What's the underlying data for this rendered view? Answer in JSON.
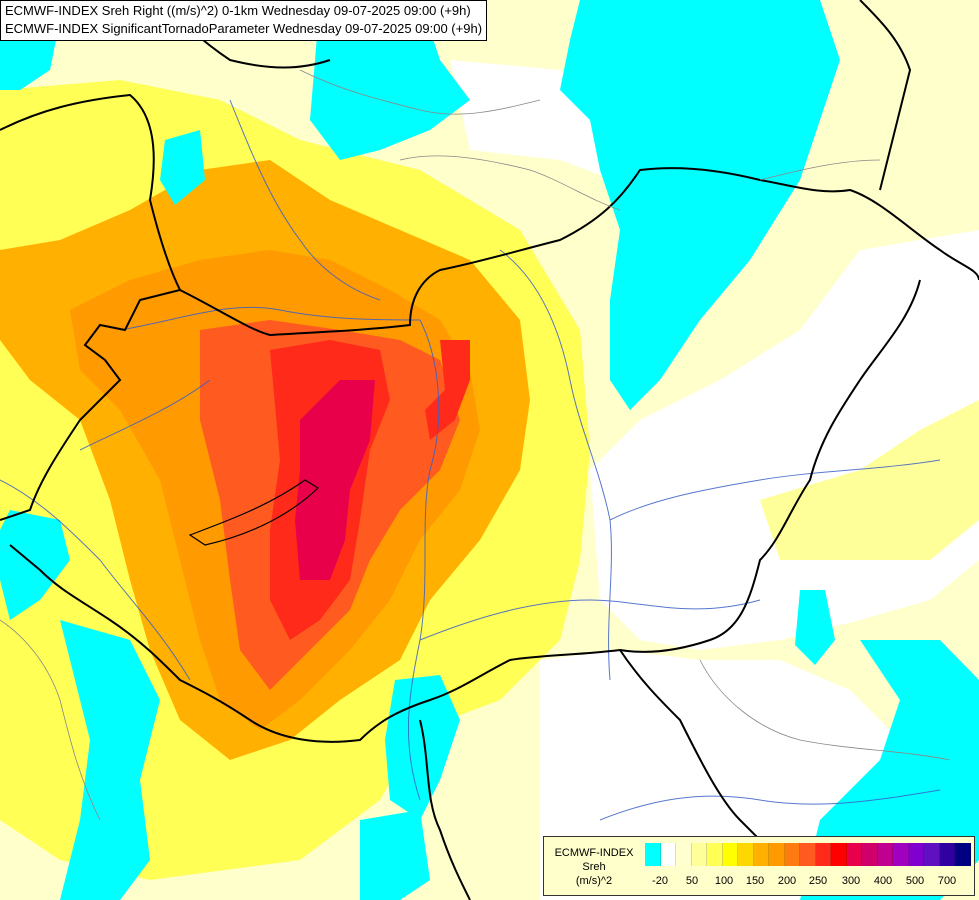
{
  "header": {
    "line1": "ECMWF-INDEX Sreh Right ((m/s)^2) 0-1km Wednesday 09-07-2025 09:00 (+9h)",
    "line2": "ECMWF-INDEX SignificantTornadoParameter Wednesday 09-07-2025 09:00 (+9h)"
  },
  "legend": {
    "model": "ECMWF-INDEX",
    "parameter": "Sreh",
    "unit": "(m/s)^2",
    "colors": [
      "#00ffff",
      "#ffffff",
      "#ffffd0",
      "#ffff99",
      "#ffff55",
      "#ffff00",
      "#ffd700",
      "#ffb000",
      "#ff9a00",
      "#ff7a10",
      "#ff5a20",
      "#ff2a1a",
      "#ff0000",
      "#e8004a",
      "#d0006a",
      "#c00090",
      "#a000c0",
      "#8000d0",
      "#6010c0",
      "#3000a0",
      "#000080"
    ],
    "ticks": [
      "-20",
      "50",
      "100",
      "150",
      "200",
      "250",
      "300",
      "400",
      "500",
      "700"
    ]
  },
  "map": {
    "background": "#ffffcc"
  }
}
